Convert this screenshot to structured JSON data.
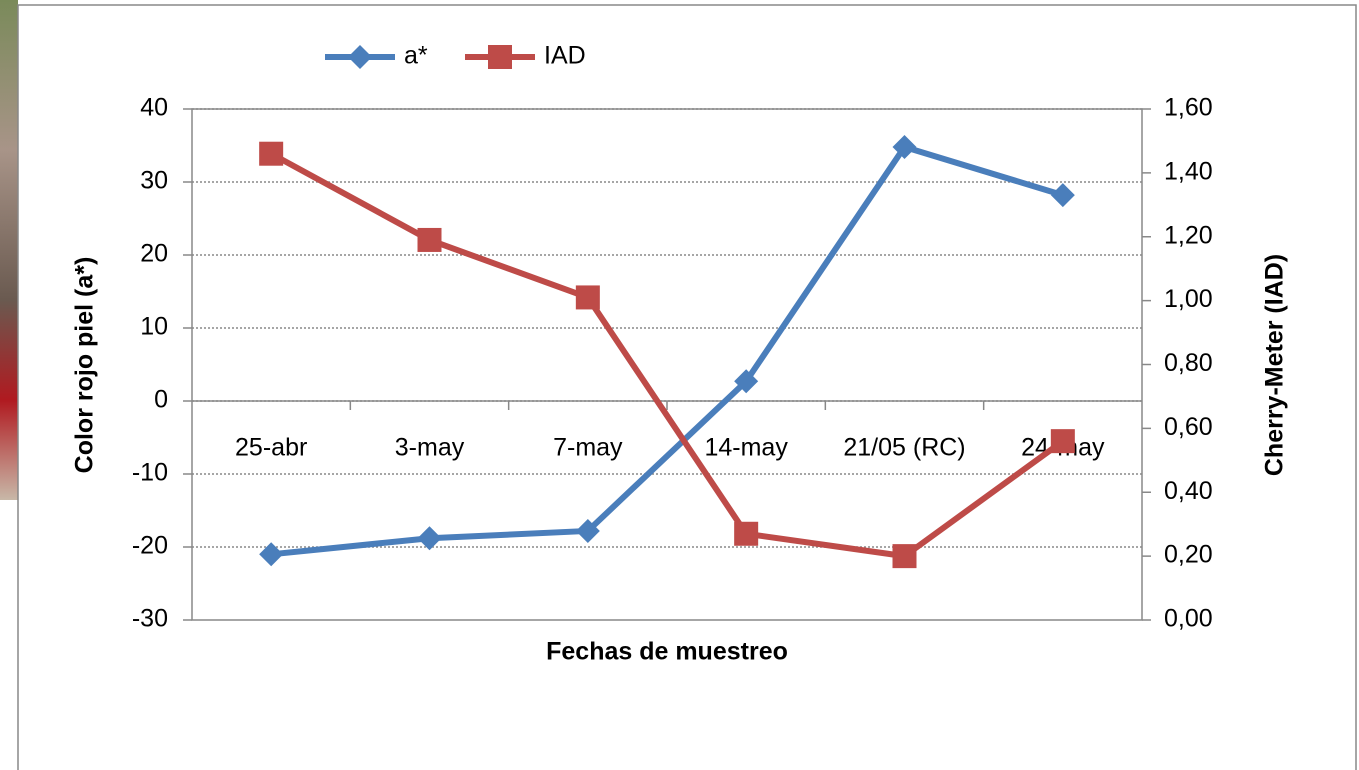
{
  "chart_data": {
    "type": "line",
    "x_label": "Fechas de muestreo",
    "y_label": "Color rojo piel (a*)",
    "y2_label": "Cherry-Meter (IAD)",
    "categories": [
      "25-abr",
      "3-may",
      "7-may",
      "14-may",
      "21/05 (RC)",
      "24-may"
    ],
    "series": [
      {
        "name": "a*",
        "color": "#4a7ebb",
        "marker": "diamond",
        "values": [
          -21,
          -18.8,
          -17.8,
          2.7,
          34.8,
          28.2
        ]
      },
      {
        "name": "IAD",
        "color": "#be4b48",
        "marker": "square",
        "axis": "y2",
        "values": [
          1.46,
          1.19,
          1.01,
          0.27,
          0.2,
          0.56
        ]
      }
    ],
    "ylim": [
      -30,
      40
    ],
    "yticks": [
      -30,
      -20,
      -10,
      0,
      10,
      20,
      30,
      40
    ],
    "y2lim": [
      0,
      1.6
    ],
    "y2ticks": [
      {
        "value": 0,
        "label": "0,00"
      },
      {
        "value": 0.2,
        "label": "0,20"
      },
      {
        "value": 0.4,
        "label": "0,40"
      },
      {
        "value": 0.6,
        "label": "0,60"
      },
      {
        "value": 0.8,
        "label": "0,80"
      },
      {
        "value": 1.0,
        "label": "1,00"
      },
      {
        "value": 1.2,
        "label": "1,20"
      },
      {
        "value": 1.4,
        "label": "1,40"
      },
      {
        "value": 1.6,
        "label": "1,60"
      }
    ],
    "grid": true,
    "legend": "top"
  }
}
